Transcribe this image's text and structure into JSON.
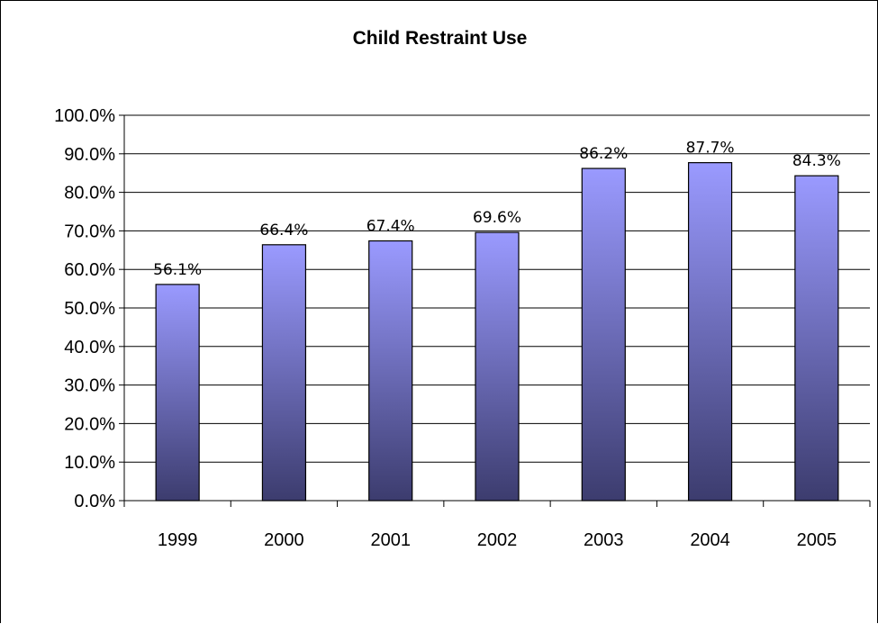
{
  "chart_data": {
    "type": "bar",
    "title": "Child Restraint Use",
    "xlabel": "",
    "ylabel": "",
    "categories": [
      "1999",
      "2000",
      "2001",
      "2002",
      "2003",
      "2004",
      "2005"
    ],
    "values": [
      56.1,
      66.4,
      67.4,
      69.6,
      86.2,
      87.7,
      84.3
    ],
    "data_labels": [
      "56.1%",
      "66.4%",
      "67.4%",
      "69.6%",
      "86.2%",
      "87.7%",
      "84.3%"
    ],
    "ylim": [
      0,
      100
    ],
    "yticks": [
      0,
      10,
      20,
      30,
      40,
      50,
      60,
      70,
      80,
      90,
      100
    ],
    "ytick_labels": [
      "0.0%",
      "10.0%",
      "20.0%",
      "30.0%",
      "40.0%",
      "50.0%",
      "60.0%",
      "70.0%",
      "80.0%",
      "90.0%",
      "100.0%"
    ],
    "grid": true,
    "legend": "none",
    "colors": {
      "bar_top": "#9a9aff",
      "bar_bottom": "#3c3c6e",
      "bar_outline": "#000000",
      "gridline": "#000000"
    }
  }
}
